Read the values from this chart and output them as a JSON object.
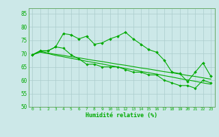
{
  "x": [
    0,
    1,
    2,
    3,
    4,
    5,
    6,
    7,
    8,
    9,
    10,
    11,
    12,
    13,
    14,
    15,
    16,
    17,
    18,
    19,
    20,
    21,
    22,
    23
  ],
  "line1": [
    69.5,
    71,
    71,
    72.5,
    77.5,
    77,
    75.5,
    76.5,
    73.5,
    74,
    75.5,
    76.5,
    78,
    75.5,
    73.5,
    71.5,
    70.5,
    67.5,
    63,
    62.5,
    59.5,
    63,
    66.5,
    61.5
  ],
  "line2": [
    69.5,
    71,
    71,
    72.5,
    72,
    69.5,
    68,
    66,
    66,
    65,
    65,
    65,
    64,
    63,
    63,
    62,
    62,
    60,
    59,
    58,
    58,
    57,
    60,
    59
  ],
  "line3": [
    69.5,
    70.8,
    70.2,
    69.7,
    69.3,
    68.8,
    68.4,
    67.9,
    67.4,
    67.0,
    66.5,
    66.0,
    65.6,
    65.1,
    64.6,
    64.2,
    63.7,
    63.2,
    62.8,
    62.3,
    61.8,
    61.4,
    60.9,
    60.4
  ],
  "line4": [
    69.5,
    70.5,
    70.0,
    69.3,
    68.8,
    68.2,
    67.7,
    67.1,
    66.6,
    66.1,
    65.5,
    65.0,
    64.4,
    63.9,
    63.3,
    62.8,
    62.3,
    61.7,
    61.2,
    60.6,
    60.1,
    59.6,
    59.0,
    58.5
  ],
  "line_color": "#00aa00",
  "bg_color": "#cce8e8",
  "grid_color": "#aacccc",
  "xlabel": "Humidité relative (%)",
  "ylim": [
    50,
    87
  ],
  "xlim": [
    -0.5,
    23.5
  ],
  "yticks": [
    50,
    55,
    60,
    65,
    70,
    75,
    80,
    85
  ],
  "xticks": [
    0,
    1,
    2,
    3,
    4,
    5,
    6,
    7,
    8,
    9,
    10,
    11,
    12,
    13,
    14,
    15,
    16,
    17,
    18,
    19,
    20,
    21,
    22,
    23
  ],
  "figsize": [
    3.2,
    2.0
  ],
  "dpi": 100
}
